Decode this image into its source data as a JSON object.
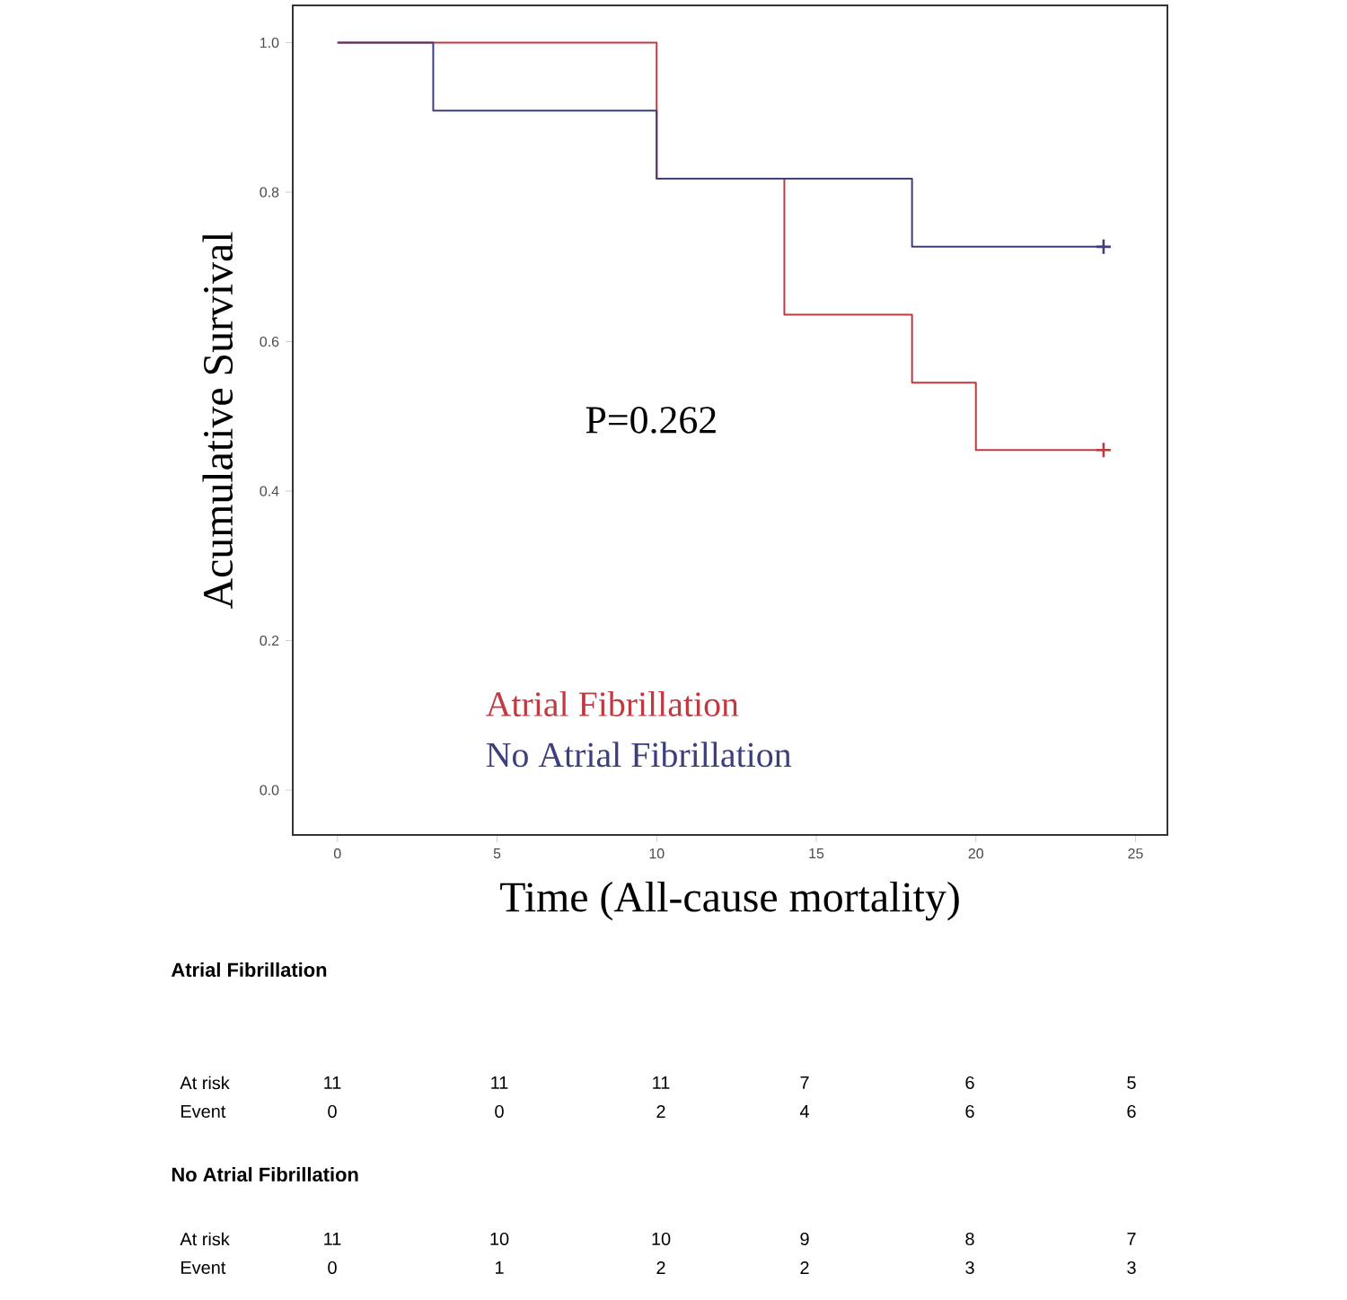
{
  "chart_data": {
    "type": "step",
    "xlabel": "Time (All-cause mortality)",
    "ylabel": "Acumulative Survival",
    "xlim": [
      -1.4,
      26
    ],
    "ylim": [
      -0.06,
      1.05
    ],
    "xticks": [
      0,
      5,
      10,
      15,
      20,
      25
    ],
    "yticks": [
      {
        "value": 0,
        "label": "0.0"
      },
      {
        "value": 0.2,
        "label": "0.2"
      },
      {
        "value": 0.4,
        "label": "0.4"
      },
      {
        "value": 0.6,
        "label": "0.6"
      },
      {
        "value": 0.8,
        "label": "0.8"
      },
      {
        "value": 1,
        "label": "1.0"
      }
    ],
    "legend": "bottom left",
    "grid": false,
    "series": [
      {
        "name": "Atrial Fibrillation",
        "color": "#c0393f",
        "x": [
          0,
          10,
          14,
          18,
          20,
          24
        ],
        "values": [
          1,
          0.818,
          0.636,
          0.545,
          0.455,
          0.455
        ]
      },
      {
        "name": "No Atrial Fibrillation",
        "color": "#3c3f7a",
        "x": [
          0,
          3,
          10,
          18,
          24
        ],
        "values": [
          1,
          0.909,
          0.818,
          0.727,
          0.727
        ]
      },
      {
        "type": "scatter",
        "marker": "cross",
        "color": "#c0393f",
        "x": [
          24
        ],
        "values": [
          0.455
        ]
      },
      {
        "type": "scatter",
        "marker": "cross",
        "color": "#3c3f7a",
        "x": [
          24
        ],
        "values": [
          0.727
        ]
      }
    ],
    "annotations": [
      "P=0.262",
      "Atrial Fibrillation",
      "At risk",
      "11",
      "11",
      "11",
      "7",
      "6",
      "5",
      "Event",
      "0",
      "0",
      "2",
      "4",
      "6",
      "6",
      "No Atrial Fibrillation",
      "At risk",
      "11",
      "10",
      "10",
      "9",
      "8",
      "7",
      "Event",
      "0",
      "1",
      "2",
      "2",
      "3",
      "3"
    ]
  }
}
